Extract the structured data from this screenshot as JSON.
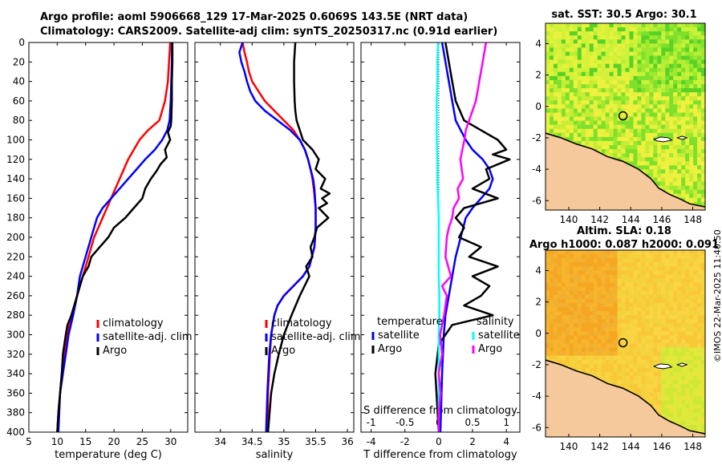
{
  "header": {
    "title_line1": "Argo profile: aoml 5906668_129 17-Mar-2025 0.6069S 143.5E (NRT data)",
    "title_line2": "Climatology: CARS2009. Satellite-adj clim: synTS_20250317.nc (0.91d earlier)"
  },
  "timestamp": "©IMOS 22-Mar-2025 11:40:50",
  "chart_data": [
    {
      "id": "temperature",
      "type": "line",
      "xlabel": "temperature (deg C)",
      "ylabel": "",
      "xlim": [
        5,
        33
      ],
      "ylim": [
        400,
        0
      ],
      "xticks": [
        5,
        10,
        15,
        20,
        25,
        30
      ],
      "yticks": [
        0,
        20,
        40,
        60,
        80,
        100,
        120,
        140,
        160,
        180,
        200,
        220,
        240,
        260,
        280,
        300,
        320,
        340,
        360,
        380,
        400
      ],
      "legend_position": "lower-center",
      "series": [
        {
          "name": "climatology",
          "color": "#ff0000",
          "x": [
            29.9,
            29.7,
            29.5,
            29.0,
            28.0,
            26.0,
            24.5,
            23.5,
            22.5,
            21.0,
            19.5,
            18.0,
            16.5,
            15.5,
            14.5,
            13.5,
            12.5,
            11.8,
            11.2,
            10.8,
            10.5,
            10.2,
            10.0
          ],
          "y": [
            0,
            20,
            40,
            60,
            80,
            90,
            100,
            110,
            120,
            140,
            160,
            180,
            200,
            220,
            240,
            260,
            280,
            300,
            320,
            340,
            360,
            380,
            400
          ]
        },
        {
          "name": "satellite-adj. clim",
          "color": "#0000ff",
          "x": [
            30.2,
            30.2,
            30.1,
            30.0,
            29.8,
            29.4,
            28.5,
            27.2,
            25.5,
            24.0,
            22.5,
            21.0,
            19.5,
            18.0,
            17.0,
            16.0,
            15.0,
            14.0,
            13.5,
            12.8,
            12.0,
            11.5,
            11.0,
            10.5,
            10.2
          ],
          "y": [
            0,
            20,
            40,
            60,
            80,
            90,
            100,
            110,
            120,
            130,
            140,
            150,
            160,
            170,
            180,
            200,
            220,
            240,
            260,
            280,
            300,
            320,
            340,
            360,
            400
          ]
        },
        {
          "name": "Argo",
          "color": "#000000",
          "x": [
            30.3,
            30.3,
            30.2,
            30.2,
            30.1,
            30.0,
            29.5,
            29.9,
            29.0,
            29.3,
            28.2,
            27.5,
            26.5,
            25.5,
            25.0,
            23.5,
            22.0,
            20.0,
            19.0,
            17.5,
            16.0,
            15.5,
            14.5,
            14.0,
            13.5,
            13.0,
            12.5,
            11.8,
            11.5,
            11.0,
            10.8,
            10.5,
            10.2,
            10.0
          ],
          "y": [
            0,
            20,
            40,
            60,
            80,
            86,
            92,
            100,
            110,
            118,
            125,
            132,
            140,
            150,
            160,
            170,
            180,
            190,
            200,
            210,
            220,
            230,
            240,
            250,
            260,
            270,
            280,
            290,
            300,
            320,
            340,
            360,
            380,
            400
          ]
        }
      ]
    },
    {
      "id": "salinity",
      "type": "line",
      "xlabel": "salinity",
      "ylabel": "",
      "xlim": [
        33.6,
        36.1
      ],
      "ylim": [
        400,
        0
      ],
      "xticks": [
        34,
        34.5,
        35,
        35.5,
        36
      ],
      "legend_position": "lower-center",
      "series": [
        {
          "name": "climatology",
          "color": "#ff0000",
          "x": [
            34.35,
            34.38,
            34.42,
            34.45,
            34.5,
            34.6,
            34.7,
            34.85,
            35.0,
            35.15,
            35.25,
            35.33,
            35.38,
            35.42,
            35.45,
            35.47,
            35.5,
            35.5,
            35.48,
            35.4,
            35.3,
            35.15,
            35.0,
            34.9,
            34.85,
            34.8,
            34.78,
            34.75,
            34.74
          ],
          "y": [
            0,
            10,
            20,
            30,
            40,
            50,
            60,
            70,
            80,
            90,
            100,
            110,
            120,
            130,
            140,
            150,
            170,
            190,
            210,
            230,
            240,
            250,
            260,
            270,
            280,
            300,
            320,
            360,
            400
          ]
        },
        {
          "name": "satellite-adj. clim",
          "color": "#0000ff",
          "x": [
            34.35,
            34.3,
            34.33,
            34.38,
            34.42,
            34.47,
            34.55,
            34.7,
            34.9,
            35.1,
            35.25,
            35.33,
            35.38,
            35.42,
            35.46,
            35.48,
            35.5,
            35.5,
            35.48,
            35.4,
            35.3,
            35.15,
            35.0,
            34.9,
            34.85,
            34.8,
            34.77,
            34.74,
            34.72
          ],
          "y": [
            0,
            10,
            20,
            30,
            40,
            50,
            60,
            70,
            80,
            90,
            100,
            110,
            120,
            130,
            140,
            150,
            170,
            190,
            210,
            230,
            240,
            250,
            260,
            270,
            280,
            300,
            320,
            360,
            400
          ]
        },
        {
          "name": "Argo",
          "color": "#000000",
          "x": [
            35.18,
            35.16,
            35.16,
            35.17,
            35.18,
            35.2,
            35.25,
            35.3,
            35.45,
            35.55,
            35.5,
            35.65,
            35.58,
            35.72,
            35.6,
            35.68,
            35.55,
            35.7,
            35.52,
            35.48,
            35.42,
            35.45,
            35.35,
            35.4,
            35.25,
            35.12,
            35.0,
            34.92,
            34.85,
            34.8,
            34.75
          ],
          "y": [
            0,
            20,
            40,
            60,
            70,
            80,
            90,
            100,
            110,
            120,
            130,
            140,
            150,
            155,
            160,
            165,
            170,
            180,
            190,
            200,
            210,
            220,
            230,
            240,
            260,
            280,
            300,
            320,
            340,
            360,
            400
          ]
        }
      ]
    },
    {
      "id": "differences",
      "type": "line",
      "xlabel": "T difference from climatology",
      "xlabel_top": "S difference from climatology",
      "xlim": [
        -4.6,
        4.8
      ],
      "ylim": [
        400,
        0
      ],
      "xticks": [
        -4,
        -2,
        0,
        2,
        4
      ],
      "xticks_top": [
        -1,
        -0.5,
        0,
        0.5,
        1
      ],
      "legend_titles": {
        "temperature": "temperature",
        "salinity": "salinity"
      },
      "legend_position": "lower-center",
      "series": [
        {
          "name": "satellite",
          "group": "temperature",
          "color": "#0000ff",
          "axis": "T",
          "x": [
            0.2,
            0.4,
            0.6,
            0.8,
            1.0,
            1.3,
            1.6,
            2.0,
            2.6,
            3.0,
            3.2,
            3.0,
            2.5,
            2.0,
            1.6,
            1.3,
            1.0,
            0.8,
            0.6,
            0.4,
            0.3,
            0.2,
            0.1
          ],
          "y": [
            0,
            20,
            40,
            60,
            80,
            90,
            100,
            110,
            120,
            130,
            140,
            150,
            160,
            170,
            180,
            200,
            220,
            240,
            260,
            280,
            300,
            340,
            400
          ]
        },
        {
          "name": "Argo",
          "group": "temperature",
          "color": "#000000",
          "axis": "T",
          "x": [
            0.4,
            0.6,
            0.8,
            1.0,
            1.5,
            2.5,
            3.5,
            4.0,
            3.2,
            4.2,
            2.8,
            3.0,
            2.0,
            3.5,
            1.5,
            1.0,
            1.5,
            1.2,
            2.5,
            1.8,
            3.5,
            2.0,
            3.0,
            2.5,
            1.5,
            3.2,
            0.8,
            0.0,
            -0.2,
            -0.1,
            0.0
          ],
          "y": [
            0,
            20,
            40,
            60,
            80,
            90,
            100,
            110,
            115,
            120,
            130,
            140,
            150,
            160,
            170,
            180,
            190,
            200,
            210,
            220,
            230,
            240,
            250,
            260,
            270,
            280,
            290,
            310,
            340,
            370,
            400
          ]
        },
        {
          "name": "satellite",
          "group": "salinity",
          "color": "#00ffff",
          "axis": "S",
          "x": [
            -0.01,
            -0.02,
            -0.02,
            -0.03,
            -0.03,
            -0.03,
            -0.02,
            -0.02,
            -0.01,
            0.0,
            0.0,
            0.0,
            0.0,
            0.01,
            0.01,
            0.0,
            0.0,
            0.0,
            0.0,
            0.0
          ],
          "y": [
            0,
            20,
            40,
            60,
            80,
            100,
            120,
            140,
            160,
            180,
            200,
            220,
            240,
            260,
            280,
            300,
            320,
            340,
            360,
            400
          ]
        },
        {
          "name": "Argo",
          "group": "salinity",
          "color": "#ff00ff",
          "axis": "S",
          "x": [
            0.7,
            0.65,
            0.6,
            0.55,
            0.5,
            0.45,
            0.4,
            0.38,
            0.32,
            0.36,
            0.28,
            0.3,
            0.22,
            0.2,
            0.15,
            0.12,
            0.1,
            0.18,
            0.05,
            0.12,
            0.08,
            0.02,
            0.05,
            0.0,
            0.03,
            0.0,
            0.0
          ],
          "y": [
            0,
            20,
            40,
            60,
            70,
            80,
            90,
            100,
            120,
            140,
            150,
            160,
            170,
            180,
            190,
            200,
            220,
            240,
            250,
            260,
            280,
            300,
            320,
            340,
            360,
            380,
            400
          ]
        }
      ]
    },
    {
      "id": "sst_map",
      "type": "heatmap",
      "title": "sat. SST: 30.5 Argo: 30.1",
      "xlim": [
        138.5,
        148.8
      ],
      "ylim": [
        -6.6,
        5.3
      ],
      "xticks": [
        140,
        142,
        144,
        146,
        148
      ],
      "yticks": [
        -6,
        -4,
        -2,
        0,
        2,
        4
      ],
      "argo_position": {
        "lon": 143.5,
        "lat": -0.6
      }
    },
    {
      "id": "sla_map",
      "type": "heatmap",
      "title": "Altim. SLA: 0.18",
      "subtitle": "Argo h1000: 0.087 h2000: 0.091",
      "xlim": [
        138.5,
        148.8
      ],
      "ylim": [
        -6.6,
        5.3
      ],
      "xticks": [
        140,
        142,
        144,
        146,
        148
      ],
      "yticks": [
        -6,
        -4,
        -2,
        0,
        2,
        4
      ],
      "argo_position": {
        "lon": 143.5,
        "lat": -0.6
      }
    }
  ]
}
